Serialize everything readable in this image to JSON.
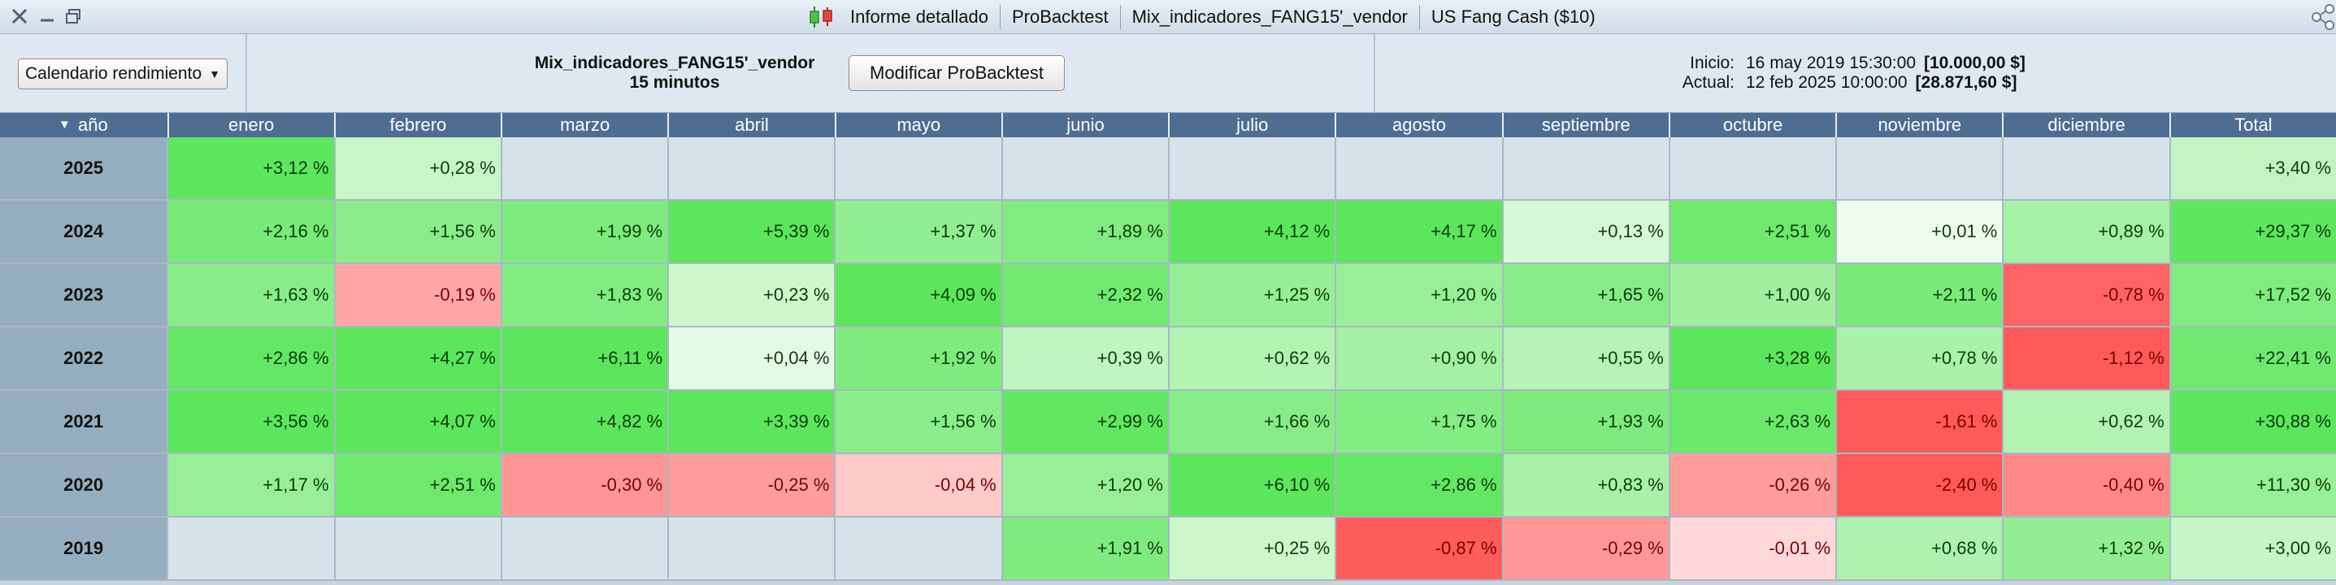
{
  "titlebar": {
    "window_controls": [
      "close-icon",
      "minimize-icon",
      "restore-icon"
    ],
    "items": [
      "Informe detallado",
      "ProBacktest",
      "Mix_indicadores_FANG15'_vendor",
      "US Fang Cash ($10)"
    ]
  },
  "header": {
    "view_select": "Calendario rendimiento",
    "strategy_name": "Mix_indicadores_FANG15'_vendor",
    "timeframe": "15 minutos",
    "modify_button": "Modificar ProBacktest",
    "start_label": "Inicio:",
    "start_date": "16 may 2019 15:30:00",
    "start_capital": "[10.000,00 $]",
    "current_label": "Actual:",
    "current_date": "12 feb 2025 10:00:00",
    "current_capital": "[28.871,60 $]"
  },
  "table": {
    "columns": [
      "año",
      "enero",
      "febrero",
      "marzo",
      "abril",
      "mayo",
      "junio",
      "julio",
      "agosto",
      "septiembre",
      "octubre",
      "noviembre",
      "diciembre",
      "Total"
    ],
    "sort_indicator": "sort-desc-icon",
    "rows": [
      {
        "year": "2025",
        "cells": [
          "+3,12 %",
          "+0,28 %",
          "",
          "",
          "",
          "",
          "",
          "",
          "",
          "",
          "",
          "",
          "+3,40 %"
        ]
      },
      {
        "year": "2024",
        "cells": [
          "+2,16 %",
          "+1,56 %",
          "+1,99 %",
          "+5,39 %",
          "+1,37 %",
          "+1,89 %",
          "+4,12 %",
          "+4,17 %",
          "+0,13 %",
          "+2,51 %",
          "+0,01 %",
          "+0,89 %",
          "+29,37 %"
        ]
      },
      {
        "year": "2023",
        "cells": [
          "+1,63 %",
          "-0,19 %",
          "+1,83 %",
          "+0,23 %",
          "+4,09 %",
          "+2,32 %",
          "+1,25 %",
          "+1,20 %",
          "+1,65 %",
          "+1,00 %",
          "+2,11 %",
          "-0,78 %",
          "+17,52 %"
        ]
      },
      {
        "year": "2022",
        "cells": [
          "+2,86 %",
          "+4,27 %",
          "+6,11 %",
          "+0,04 %",
          "+1,92 %",
          "+0,39 %",
          "+0,62 %",
          "+0,90 %",
          "+0,55 %",
          "+3,28 %",
          "+0,78 %",
          "-1,12 %",
          "+22,41 %"
        ]
      },
      {
        "year": "2021",
        "cells": [
          "+3,56 %",
          "+4,07 %",
          "+4,82 %",
          "+3,39 %",
          "+1,56 %",
          "+2,99 %",
          "+1,66 %",
          "+1,75 %",
          "+1,93 %",
          "+2,63 %",
          "-1,61 %",
          "+0,62 %",
          "+30,88 %"
        ]
      },
      {
        "year": "2020",
        "cells": [
          "+1,17 %",
          "+2,51 %",
          "-0,30 %",
          "-0,25 %",
          "-0,04 %",
          "+1,20 %",
          "+6,10 %",
          "+2,86 %",
          "+0,83 %",
          "-0,26 %",
          "-2,40 %",
          "-0,40 %",
          "+11,30 %"
        ]
      },
      {
        "year": "2019",
        "cells": [
          "",
          "",
          "",
          "",
          "",
          "+1,91 %",
          "+0,25 %",
          "-0,87 %",
          "-0,29 %",
          "-0,01 %",
          "+0,68 %",
          "+1,32 %",
          "+3,00 %"
        ]
      }
    ]
  },
  "colors": {
    "header_bar": "#4d6d93",
    "year_cell": "#95aebf",
    "empty_cell": "#d6e2ea",
    "positive_strong": "#5ce65c",
    "negative_strong": "#ff5a5a"
  }
}
